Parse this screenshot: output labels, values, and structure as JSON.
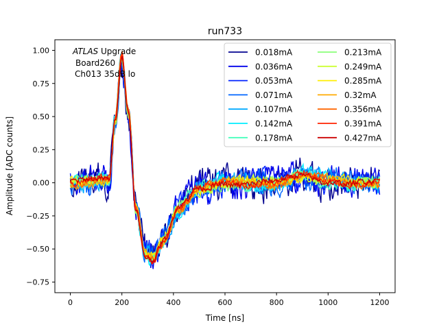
{
  "chart_data": {
    "type": "line",
    "title": "run733",
    "xlabel": "Time [ns]",
    "ylabel": "Amplitude [ADC counts]",
    "xlim": [
      -60,
      1260
    ],
    "ylim": [
      -0.83,
      1.08
    ],
    "xticks": [
      0,
      200,
      400,
      600,
      800,
      1000,
      1200
    ],
    "yticks": [
      -0.75,
      -0.5,
      -0.25,
      0.0,
      0.25,
      0.5,
      0.75,
      1.0
    ],
    "ytick_labels": [
      "−0.75",
      "−0.50",
      "−0.25",
      "0.00",
      "0.25",
      "0.50",
      "0.75",
      "1.00"
    ],
    "grid": false,
    "legend_position": "top-right",
    "legend_columns": 2,
    "annotation": {
      "italic": "ATLAS",
      "line1_rest": " Upgrade",
      "line2": "Board260",
      "line3": "Ch013 35dB lo"
    },
    "waveform_shape": {
      "x": [
        0,
        150,
        175,
        200,
        225,
        255,
        290,
        320,
        360,
        420,
        500,
        600,
        700,
        800,
        900,
        1000,
        1100,
        1200
      ],
      "y": [
        0.0,
        0.02,
        0.5,
        0.98,
        0.55,
        -0.2,
        -0.55,
        -0.58,
        -0.45,
        -0.2,
        -0.05,
        0.0,
        0.0,
        0.0,
        0.05,
        0.02,
        0.0,
        0.0
      ]
    },
    "series": [
      {
        "name": "0.018mA",
        "color": "#00008f",
        "noise": 0.14
      },
      {
        "name": "0.036mA",
        "color": "#0000ea",
        "noise": 0.12
      },
      {
        "name": "0.053mA",
        "color": "#0022ff",
        "noise": 0.1
      },
      {
        "name": "0.071mA",
        "color": "#0066ff",
        "noise": 0.085
      },
      {
        "name": "0.107mA",
        "color": "#00aaff",
        "noise": 0.07
      },
      {
        "name": "0.142mA",
        "color": "#00eeff",
        "noise": 0.06
      },
      {
        "name": "0.178mA",
        "color": "#44ffbb",
        "noise": 0.05
      },
      {
        "name": "0.213mA",
        "color": "#88ff77",
        "noise": 0.045
      },
      {
        "name": "0.249mA",
        "color": "#ccff33",
        "noise": 0.04
      },
      {
        "name": "0.285mA",
        "color": "#ffee00",
        "noise": 0.035
      },
      {
        "name": "0.32mA",
        "color": "#ffaa00",
        "noise": 0.032
      },
      {
        "name": "0.356mA",
        "color": "#ff6600",
        "noise": 0.03
      },
      {
        "name": "0.391mA",
        "color": "#ff2200",
        "noise": 0.028
      },
      {
        "name": "0.427mA",
        "color": "#cc0000",
        "noise": 0.026
      }
    ]
  }
}
